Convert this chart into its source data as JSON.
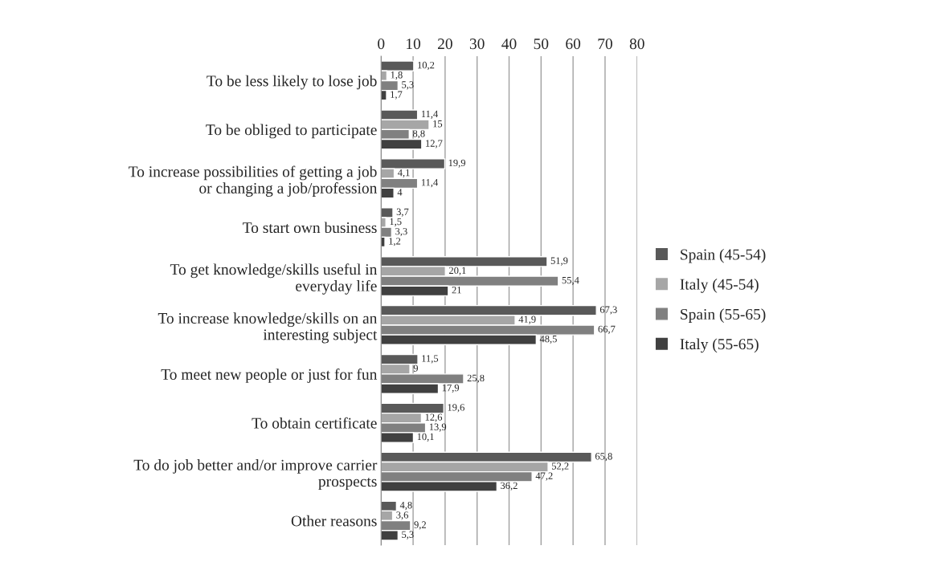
{
  "chart_data": {
    "type": "bar",
    "orientation": "horizontal",
    "categories": [
      "To be less likely to lose job",
      "To be obliged to participate",
      "To increase possibilities of getting a job\nor changing a job/profession",
      "To start own business",
      "To get knowledge/skills useful in\neveryday life",
      "To increase knowledge/skills on an\ninteresting subject",
      "To meet new people or just for fun",
      "To obtain certificate",
      "To do job better and/or improve carrier\nprospects",
      "Other reasons"
    ],
    "series": [
      {
        "name": "Spain (45-54)",
        "color": "#595959",
        "values": [
          10.2,
          11.4,
          19.9,
          3.7,
          51.9,
          67.3,
          11.5,
          19.6,
          65.8,
          4.8
        ],
        "value_labels": [
          "10,2",
          "11,4",
          "19,9",
          "3,7",
          "51,9",
          "67,3",
          "11,5",
          "19,6",
          "65,8",
          "4,8"
        ]
      },
      {
        "name": "Italy (45-54)",
        "color": "#a6a6a6",
        "values": [
          1.8,
          15,
          4.1,
          1.5,
          20.1,
          41.9,
          9,
          12.6,
          52.2,
          3.6
        ],
        "value_labels": [
          "1,8",
          "15",
          "4,1",
          "1,5",
          "20,1",
          "41,9",
          "9",
          "12,6",
          "52,2",
          "3,6"
        ]
      },
      {
        "name": "Spain (55-65)",
        "color": "#808080",
        "values": [
          5.3,
          8.8,
          11.4,
          3.3,
          55.4,
          66.7,
          25.8,
          13.9,
          47.2,
          9.2
        ],
        "value_labels": [
          "5,3",
          "8,8",
          "11,4",
          "3,3",
          "55,4",
          "66,7",
          "25,8",
          "13,9",
          "47,2",
          "9,2"
        ]
      },
      {
        "name": "Italy (55-65)",
        "color": "#404040",
        "values": [
          1.7,
          12.7,
          4,
          1.2,
          21,
          48.5,
          17.9,
          10.1,
          36.2,
          5.3
        ],
        "value_labels": [
          "1,7",
          "12,7",
          "4",
          "1,2",
          "21",
          "48,5",
          "17,9",
          "10,1",
          "36,2",
          "5,3"
        ]
      }
    ],
    "xlim": [
      0,
      80
    ],
    "xticks": [
      0,
      10,
      20,
      30,
      40,
      50,
      60,
      70,
      80
    ],
    "grid": "x",
    "legend": "right"
  }
}
